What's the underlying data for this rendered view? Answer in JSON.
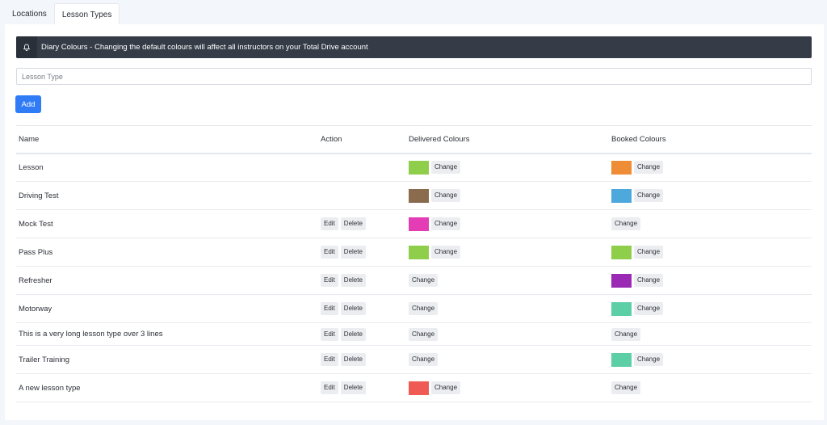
{
  "tabs": [
    {
      "label": "Locations",
      "active": false
    },
    {
      "label": "Lesson Types",
      "active": true
    }
  ],
  "alert": {
    "icon": "bell-icon",
    "text": "Diary Colours - Changing the default colours will affect all instructors on your Total Drive account"
  },
  "form": {
    "placeholder": "Lesson Type",
    "add_label": "Add"
  },
  "table": {
    "headers": {
      "name": "Name",
      "action": "Action",
      "delivered": "Delivered Colours",
      "booked": "Booked Colours"
    },
    "edit_label": "Edit",
    "delete_label": "Delete",
    "change_label": "Change",
    "rows": [
      {
        "name": "Lesson",
        "editable": false,
        "delivered": "#8fce4a",
        "booked": "#ef8c36"
      },
      {
        "name": "Driving Test",
        "editable": false,
        "delivered": "#8b6b4d",
        "booked": "#4da8dc"
      },
      {
        "name": "Mock Test",
        "editable": true,
        "delivered": "#e43cb4",
        "booked": null
      },
      {
        "name": "Pass Plus",
        "editable": true,
        "delivered": "#8fce4a",
        "booked": "#8fce4a"
      },
      {
        "name": "Refresher",
        "editable": true,
        "delivered": null,
        "booked": "#9a2ab4"
      },
      {
        "name": "Motorway",
        "editable": true,
        "delivered": null,
        "booked": "#5ccfa7"
      },
      {
        "name": "This is a very long lesson type over 3 lines",
        "editable": true,
        "delivered": null,
        "booked": null
      },
      {
        "name": "Trailer Training",
        "editable": true,
        "delivered": null,
        "booked": "#5ccfa7"
      },
      {
        "name": "A new lesson type",
        "editable": true,
        "delivered": "#ef5a54",
        "booked": null
      }
    ]
  }
}
